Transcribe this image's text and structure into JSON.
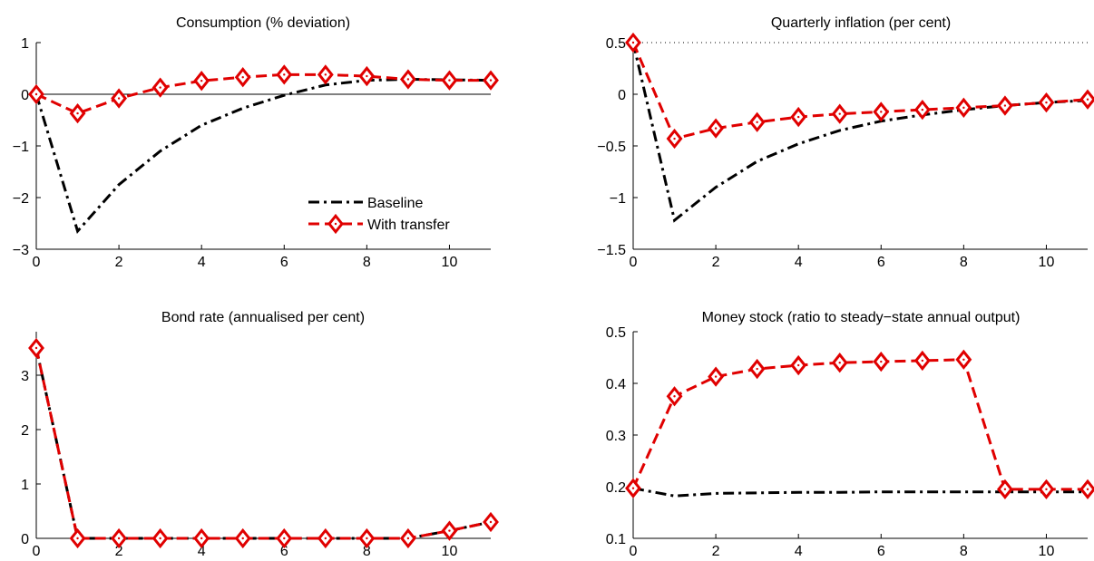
{
  "colors": {
    "baseline": "#000000",
    "transfer": "#e00000",
    "axis": "#000000"
  },
  "legend": {
    "entries": [
      "Baseline",
      "With transfer"
    ],
    "placement": "bottom-right"
  },
  "chart_data": [
    {
      "type": "line",
      "title": "Consumption (% deviation)",
      "xlim": [
        0,
        11
      ],
      "ylim": [
        -3,
        1
      ],
      "xticks": [
        0,
        2,
        4,
        6,
        8,
        10
      ],
      "yticks": [
        -3,
        -2,
        -1,
        0,
        1
      ],
      "ytick_labels": [
        "−3",
        "−2",
        "−1",
        "0",
        "1"
      ],
      "zero_line": true,
      "x": [
        0,
        1,
        2,
        3,
        4,
        5,
        6,
        7,
        8,
        9,
        10,
        11
      ],
      "series": [
        {
          "name": "Baseline",
          "style": "dash-dot",
          "values": [
            0,
            -2.65,
            -1.75,
            -1.1,
            -0.6,
            -0.27,
            -0.02,
            0.18,
            0.27,
            0.29,
            0.28,
            0.27
          ]
        },
        {
          "name": "With transfer",
          "style": "dashed-diamond",
          "values": [
            0,
            -0.37,
            -0.08,
            0.13,
            0.26,
            0.33,
            0.38,
            0.38,
            0.35,
            0.29,
            0.27,
            0.27
          ]
        }
      ]
    },
    {
      "type": "line",
      "title": "Quarterly inflation (per cent)",
      "xlim": [
        0,
        11
      ],
      "ylim": [
        -1.5,
        0.5
      ],
      "xticks": [
        0,
        2,
        4,
        6,
        8,
        10
      ],
      "yticks": [
        -1.5,
        -1,
        -0.5,
        0,
        0.5
      ],
      "ytick_labels": [
        "−1.5",
        "−1",
        "−0.5",
        "0",
        "0.5"
      ],
      "reference_line": 0.5,
      "x": [
        0,
        1,
        2,
        3,
        4,
        5,
        6,
        7,
        8,
        9,
        10,
        11
      ],
      "series": [
        {
          "name": "Baseline",
          "style": "dash-dot",
          "values": [
            0.5,
            -1.22,
            -0.9,
            -0.65,
            -0.48,
            -0.35,
            -0.26,
            -0.2,
            -0.15,
            -0.11,
            -0.08,
            -0.06
          ]
        },
        {
          "name": "With transfer",
          "style": "dashed-diamond",
          "values": [
            0.5,
            -0.43,
            -0.33,
            -0.27,
            -0.22,
            -0.19,
            -0.17,
            -0.15,
            -0.13,
            -0.11,
            -0.08,
            -0.05
          ]
        }
      ]
    },
    {
      "type": "line",
      "title": "Bond rate (annualised per cent)",
      "xlim": [
        0,
        11
      ],
      "ylim": [
        0,
        3.8
      ],
      "xticks": [
        0,
        2,
        4,
        6,
        8,
        10
      ],
      "yticks": [
        0,
        1,
        2,
        3
      ],
      "ytick_labels": [
        "0",
        "1",
        "2",
        "3"
      ],
      "x": [
        0,
        1,
        2,
        3,
        4,
        5,
        6,
        7,
        8,
        9,
        10,
        11
      ],
      "series": [
        {
          "name": "Baseline",
          "style": "dash-dot",
          "values": [
            3.5,
            0,
            0,
            0,
            0,
            0,
            0,
            0,
            0,
            0,
            0.14,
            0.3
          ]
        },
        {
          "name": "With transfer",
          "style": "dashed-diamond",
          "values": [
            3.5,
            0,
            0,
            0,
            0,
            0,
            0,
            0,
            0,
            0,
            0.14,
            0.3
          ]
        }
      ]
    },
    {
      "type": "line",
      "title": "Money stock (ratio to steady−state annual output)",
      "xlim": [
        0,
        11
      ],
      "ylim": [
        0.1,
        0.5
      ],
      "xticks": [
        0,
        2,
        4,
        6,
        8,
        10
      ],
      "yticks": [
        0.1,
        0.2,
        0.3,
        0.4,
        0.5
      ],
      "ytick_labels": [
        "0.1",
        "0.2",
        "0.3",
        "0.4",
        "0.5"
      ],
      "x": [
        0,
        1,
        2,
        3,
        4,
        5,
        6,
        7,
        8,
        9,
        10,
        11
      ],
      "series": [
        {
          "name": "Baseline",
          "style": "dash-dot",
          "values": [
            0.197,
            0.182,
            0.187,
            0.188,
            0.189,
            0.189,
            0.19,
            0.19,
            0.19,
            0.19,
            0.19,
            0.19
          ]
        },
        {
          "name": "With transfer",
          "style": "dashed-diamond",
          "values": [
            0.197,
            0.375,
            0.413,
            0.428,
            0.435,
            0.44,
            0.442,
            0.444,
            0.446,
            0.195,
            0.195,
            0.195
          ]
        }
      ]
    }
  ]
}
